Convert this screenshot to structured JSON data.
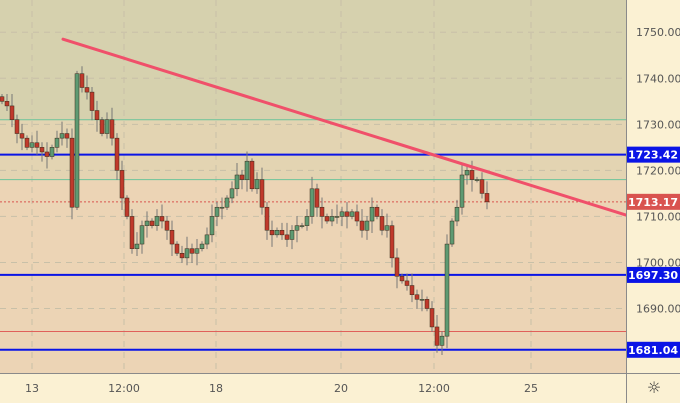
{
  "chart_data": {
    "type": "candlestick",
    "y_range": [
      1676,
      1757
    ],
    "y_ticks": [
      "1750.00",
      "1740.00",
      "1730.00",
      "1720.00",
      "1710.00",
      "1700.00",
      "1690.00"
    ],
    "y_tick_values": [
      1750,
      1740,
      1730,
      1720,
      1710,
      1700,
      1690
    ],
    "x_ticks": [
      {
        "label": "13",
        "index": 6
      },
      {
        "label": "12:00",
        "index": 24.4
      },
      {
        "label": "18",
        "index": 42.8
      },
      {
        "label": "20",
        "index": 67.8
      },
      {
        "label": "12:00",
        "index": 86.4
      },
      {
        "label": "25",
        "index": 105.8
      }
    ],
    "index_range": [
      -0.4,
      124.8
    ],
    "first_open": 1736,
    "closes": [
      1735,
      1734,
      1731,
      1728,
      1727,
      1725,
      1726,
      1725,
      1724,
      1723,
      1725,
      1727,
      1728,
      1727,
      1712,
      1741,
      1738,
      1737,
      1733,
      1731,
      1728,
      1731,
      1727,
      1720,
      1714,
      1710,
      1703,
      1704,
      1708,
      1709,
      1708,
      1710,
      1709,
      1707,
      1704,
      1702,
      1701,
      1703,
      1702,
      1703,
      1704,
      1706,
      1710,
      1712,
      1712,
      1714,
      1716,
      1719,
      1718,
      1722,
      1716,
      1718,
      1712,
      1707,
      1706,
      1707,
      1706,
      1705,
      1707,
      1708,
      1708,
      1710,
      1716,
      1712,
      1710,
      1709,
      1710,
      1710,
      1711,
      1710,
      1711,
      1709,
      1707,
      1709,
      1712,
      1710,
      1707,
      1708,
      1701,
      1697,
      1696,
      1695,
      1693,
      1692,
      1692,
      1690,
      1686,
      1682,
      1684,
      1704,
      1709,
      1712,
      1719,
      1720,
      1718,
      1718,
      1715,
      1713.17
    ],
    "horizontal_levels": [
      {
        "price": 1723.42,
        "label": "1723.42",
        "color": "#0a14e6",
        "style": "solid-thick",
        "tagged": true
      },
      {
        "price": 1697.3,
        "label": "1697.30",
        "color": "#0a14e6",
        "style": "solid-thick",
        "tagged": true
      },
      {
        "price": 1681.04,
        "label": "1681.04",
        "color": "#0a14e6",
        "style": "solid-thick",
        "tagged": true
      },
      {
        "price": 1731,
        "color": "#6cc49a",
        "style": "thin"
      },
      {
        "price": 1718,
        "color": "#6cc49a",
        "style": "thin"
      },
      {
        "price": 1685,
        "color": "#e0605a",
        "style": "thin"
      }
    ],
    "current_price": {
      "price": 1713.17,
      "label": "1713.17",
      "color": "#d9534f"
    },
    "trendline": {
      "from": {
        "index": 12.2,
        "price": 1748.5
      },
      "to": {
        "index": 124.8,
        "price": 1710.3
      },
      "color": "#f0506a"
    },
    "zones": [
      {
        "from": 1731,
        "to": 1757,
        "color": "#d6d1ae"
      },
      {
        "from": 1718,
        "to": 1731,
        "color": "#e3d4b2"
      },
      {
        "from": 1676,
        "to": 1718,
        "color": "#ecd4b5"
      }
    ],
    "colors": {
      "up": "#5e9a72",
      "down": "#c0392b",
      "outline": "#3a2a1a",
      "wick": "#777777",
      "grid": "#c8c0a8",
      "axis_bg": "#fbf1d3"
    },
    "grid": true
  },
  "settings_icon": "gear-icon"
}
